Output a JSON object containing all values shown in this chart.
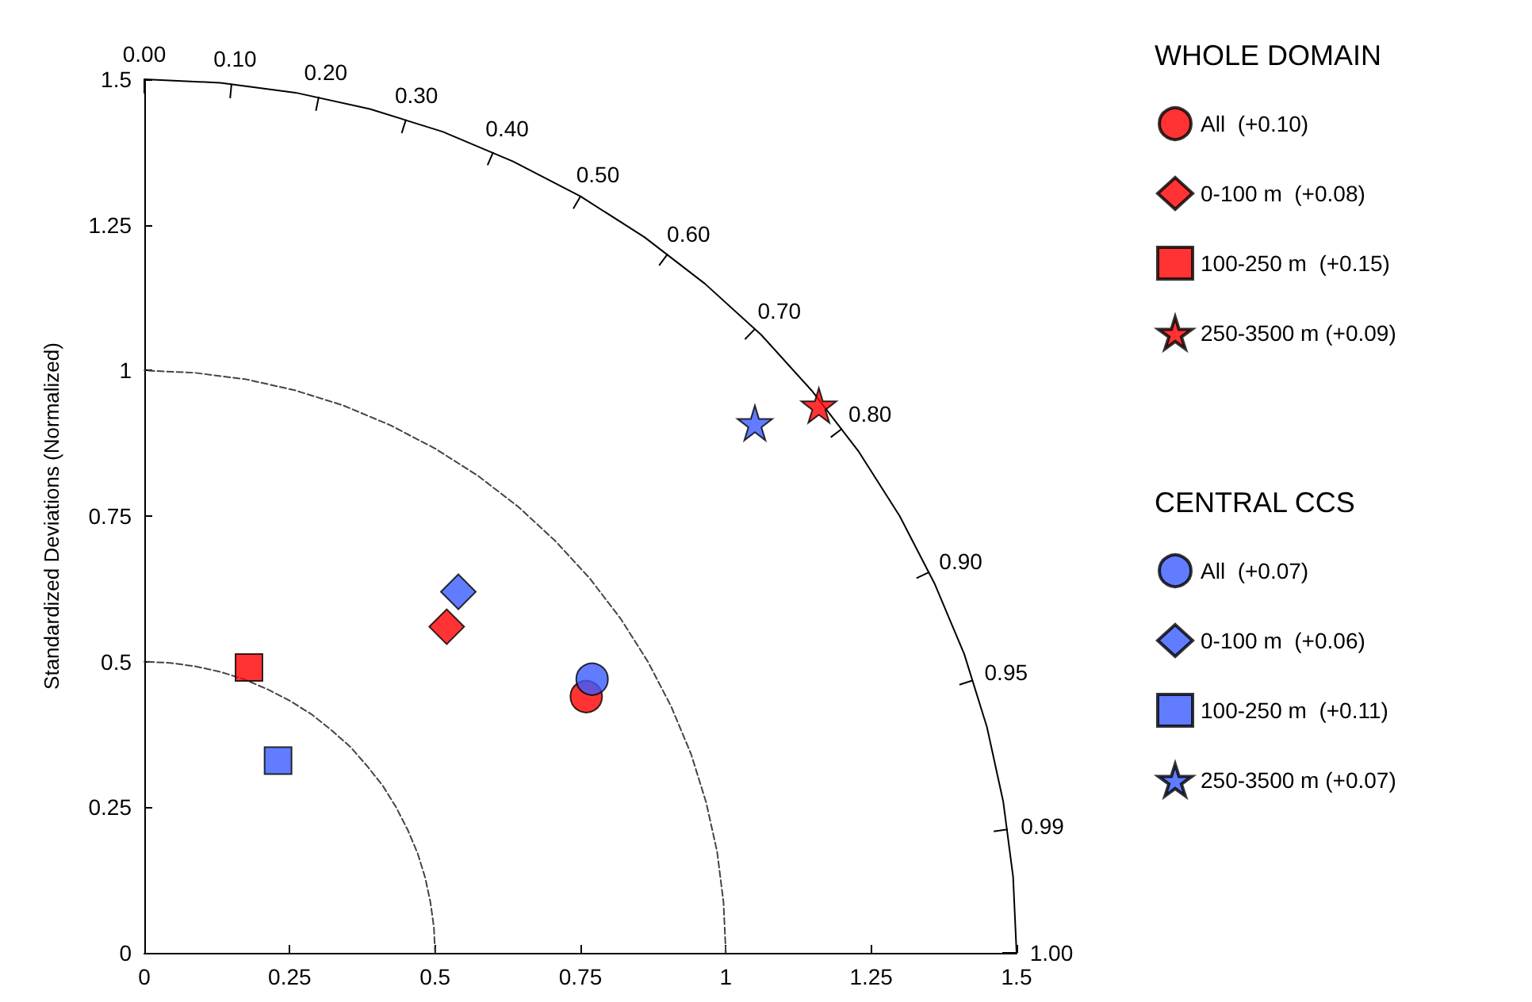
{
  "chart_data": {
    "type": "scatter",
    "ylabel": "Standardized Deviations (Normalized)",
    "xlim": [
      0,
      1.5
    ],
    "ylim": [
      0,
      1.5
    ],
    "xticks": [
      0,
      0.25,
      0.5,
      0.75,
      1,
      1.25,
      1.5
    ],
    "yticks": [
      0,
      0.25,
      0.5,
      0.75,
      1,
      1.25,
      1.5
    ],
    "grid": false,
    "legend": "right",
    "series": [
      {
        "name": "All  (+0.10)",
        "color": "#ff0000",
        "marker": "circle",
        "x": [
          0.76
        ],
        "values": [
          0.44
        ]
      },
      {
        "name": "0-100 m  (+0.08)",
        "color": "#ff0000",
        "marker": "diamond",
        "x": [
          0.52
        ],
        "values": [
          0.56
        ]
      },
      {
        "name": "100-250 m  (+0.15)",
        "color": "#ff0000",
        "marker": "square",
        "x": [
          0.18
        ],
        "values": [
          0.49
        ]
      },
      {
        "name": "250-3500 m (+0.09)",
        "color": "#ff0000",
        "marker": "star",
        "x": [
          1.16
        ],
        "values": [
          0.94
        ]
      },
      {
        "name": "All  (+0.07)",
        "color": "#3b5bff",
        "marker": "circle",
        "x": [
          0.77
        ],
        "values": [
          0.47
        ]
      },
      {
        "name": "0-100 m  (+0.06)",
        "color": "#3b5bff",
        "marker": "diamond",
        "x": [
          0.54
        ],
        "values": [
          0.62
        ]
      },
      {
        "name": "100-250 m  (+0.11)",
        "color": "#3b5bff",
        "marker": "square",
        "x": [
          0.23
        ],
        "values": [
          0.33
        ]
      },
      {
        "name": "250-3500 m (+0.07)",
        "color": "#3b5bff",
        "marker": "star",
        "x": [
          1.05
        ],
        "values": [
          0.91
        ]
      },
      {
        "type": "line",
        "color": "#000000",
        "line_style": "solid",
        "marker": "none",
        "x": [
          1.5,
          1.494,
          1.477,
          1.449,
          1.41,
          1.359,
          1.299,
          1.229,
          1.149,
          1.061,
          0.964,
          0.86,
          0.75,
          0.634,
          0.513,
          0.388,
          0.26,
          0.131,
          0
        ],
        "values": [
          0,
          0.131,
          0.26,
          0.388,
          0.513,
          0.634,
          0.75,
          0.86,
          0.964,
          1.061,
          1.149,
          1.229,
          1.299,
          1.359,
          1.41,
          1.449,
          1.477,
          1.494,
          1.5
        ]
      },
      {
        "type": "line",
        "color": "#444444",
        "line_style": "dashed",
        "marker": "none",
        "x": [
          1,
          0.996,
          0.985,
          0.966,
          0.94,
          0.906,
          0.866,
          0.819,
          0.766,
          0.707,
          0.643,
          0.574,
          0.5,
          0.423,
          0.342,
          0.259,
          0.174,
          0.087,
          0
        ],
        "values": [
          0,
          0.087,
          0.174,
          0.259,
          0.342,
          0.423,
          0.5,
          0.574,
          0.643,
          0.707,
          0.766,
          0.819,
          0.866,
          0.906,
          0.94,
          0.966,
          0.985,
          0.996,
          1
        ]
      },
      {
        "type": "line",
        "color": "#444444",
        "line_style": "dashed",
        "marker": "none",
        "x": [
          0.5,
          0.498,
          0.492,
          0.483,
          0.47,
          0.453,
          0.433,
          0.41,
          0.383,
          0.354,
          0.321,
          0.287,
          0.25,
          0.211,
          0.171,
          0.129,
          0.087,
          0.044,
          0
        ],
        "values": [
          0,
          0.044,
          0.087,
          0.129,
          0.171,
          0.211,
          0.25,
          0.287,
          0.321,
          0.354,
          0.383,
          0.41,
          0.433,
          0.453,
          0.47,
          0.483,
          0.492,
          0.498,
          0.5
        ]
      }
    ],
    "annotations": [
      "WHOLE DOMAIN",
      "CENTRAL CCS",
      {
        "text": "0.00",
        "x": 0,
        "y": 1.5
      },
      {
        "text": "0.10",
        "x": 0.15,
        "y": 1.492
      },
      {
        "text": "0.20",
        "x": 0.3,
        "y": 1.47
      },
      {
        "text": "0.30",
        "x": 0.45,
        "y": 1.431
      },
      {
        "text": "0.40",
        "x": 0.6,
        "y": 1.375
      },
      {
        "text": "0.50",
        "x": 0.75,
        "y": 1.299
      },
      {
        "text": "0.60",
        "x": 0.9,
        "y": 1.2
      },
      {
        "text": "0.70",
        "x": 1.05,
        "y": 1.071
      },
      {
        "text": "0.80",
        "x": 1.2,
        "y": 0.9
      },
      {
        "text": "0.90",
        "x": 1.35,
        "y": 0.654
      },
      {
        "text": "0.95",
        "x": 1.425,
        "y": 0.468
      },
      {
        "text": "0.99",
        "x": 1.485,
        "y": 0.212
      },
      {
        "text": "1.00",
        "x": 1.5,
        "y": 0
      }
    ]
  }
}
